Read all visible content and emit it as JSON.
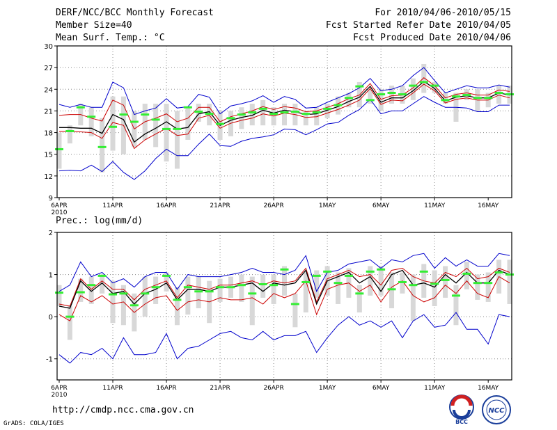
{
  "header": {
    "title": "DERF/NCC/BCC Monthly Forecast",
    "member_size": "Member Size=40",
    "variable": "Mean Surf. Temp.: °C",
    "period": "For 2010/04/06-2010/05/15",
    "started": "Fcst Started Refer Date 2010/04/05",
    "produced": "Fcst Produced Date 2010/04/06"
  },
  "footer": {
    "url": "http://cmdp.ncc.cma.gov.cn",
    "credit": "GrADS: COLA/IGES"
  },
  "logos": {
    "bcc": "BCC",
    "ncc": "NCC"
  },
  "colors": {
    "max": "#0000cc",
    "mean": "#000000",
    "std": "#cc0000",
    "median": "#33ee33",
    "box": "#d8d8d8"
  },
  "chart_data": [
    {
      "type": "line",
      "title": "Mean Surf. Temp.: °C",
      "x_ticks": [
        "6APR",
        "11APR",
        "16APR",
        "21APR",
        "26APR",
        "1MAY",
        "6MAY",
        "11MAY",
        "16MAY"
      ],
      "x_year": "2010",
      "ylim": [
        9,
        30
      ],
      "y_ticks": [
        9,
        12,
        15,
        18,
        21,
        24,
        27,
        30
      ],
      "grid": true,
      "series": [
        {
          "name": "ensemble max",
          "values": [
            21.9,
            21.5,
            21.9,
            21.5,
            21.5,
            25.0,
            24.2,
            20.5,
            21.0,
            21.4,
            22.7,
            21.4,
            21.6,
            23.3,
            22.9,
            20.6,
            21.7,
            22.0,
            22.4,
            23.1,
            22.2,
            23.0,
            22.6,
            21.4,
            21.5,
            22.2,
            22.8,
            23.4,
            24.2,
            25.5,
            23.8,
            24.0,
            24.5,
            25.9,
            27.0,
            25.2,
            23.5,
            24.0,
            24.5,
            24.2,
            24.2,
            24.6,
            24.3
          ]
        },
        {
          "name": "mean + std",
          "values": [
            20.4,
            20.5,
            20.5,
            20.0,
            19.6,
            22.5,
            21.8,
            18.5,
            19.5,
            20.0,
            20.6,
            19.5,
            20.0,
            21.5,
            21.5,
            19.5,
            20.2,
            20.6,
            21.0,
            21.6,
            21.2,
            21.6,
            21.4,
            20.9,
            21.0,
            21.5,
            22.0,
            22.7,
            23.2,
            24.8,
            22.6,
            23.1,
            23.2,
            24.2,
            25.6,
            24.5,
            22.8,
            23.3,
            23.5,
            23.2,
            23.2,
            23.9,
            23.7
          ]
        },
        {
          "name": "ensemble mean",
          "values": [
            18.7,
            18.7,
            18.6,
            18.6,
            17.9,
            20.5,
            19.8,
            16.7,
            17.8,
            18.6,
            19.5,
            18.5,
            18.7,
            20.6,
            20.9,
            19.0,
            19.7,
            20.1,
            20.4,
            21.1,
            20.7,
            21.1,
            20.9,
            20.5,
            20.6,
            21.1,
            21.6,
            22.3,
            22.9,
            24.4,
            22.2,
            22.8,
            22.8,
            23.8,
            25.1,
            24.1,
            22.4,
            22.9,
            23.1,
            22.8,
            22.8,
            23.5,
            23.2
          ]
        },
        {
          "name": "mean - std",
          "values": [
            18.2,
            18.2,
            18.1,
            18.0,
            17.2,
            19.4,
            19.0,
            15.8,
            17.0,
            17.8,
            18.6,
            17.6,
            17.8,
            20.0,
            20.4,
            18.6,
            19.3,
            19.7,
            20.0,
            20.6,
            20.3,
            20.7,
            20.5,
            20.1,
            20.2,
            20.7,
            21.2,
            21.8,
            22.5,
            24.1,
            21.9,
            22.5,
            22.4,
            23.5,
            24.7,
            23.8,
            22.1,
            22.6,
            22.8,
            22.5,
            22.5,
            23.2,
            22.8
          ]
        },
        {
          "name": "ensemble min",
          "values": [
            12.7,
            12.8,
            12.7,
            13.5,
            12.6,
            14.0,
            12.5,
            11.5,
            12.7,
            14.4,
            15.7,
            14.8,
            14.8,
            16.4,
            17.8,
            16.2,
            16.1,
            16.8,
            17.2,
            17.4,
            17.7,
            18.5,
            18.4,
            17.7,
            18.4,
            19.2,
            19.4,
            20.4,
            21.2,
            22.6,
            20.6,
            21.0,
            21.0,
            22.0,
            23.0,
            22.2,
            21.5,
            21.5,
            21.4,
            20.9,
            20.9,
            21.8,
            21.8
          ]
        },
        {
          "name": "median",
          "values": [
            15.7,
            18.2,
            21.5,
            20.2,
            16.0,
            18.8,
            20.5,
            19.5,
            20.5,
            19.8,
            18.5,
            18.5,
            21.5,
            20.9,
            20.6,
            19.2,
            20.0,
            20.5,
            20.8,
            21.3,
            20.6,
            20.8,
            20.9,
            20.6,
            20.8,
            21.3,
            21.8,
            22.8,
            24.4,
            22.5,
            23.3,
            23.5,
            23.3,
            24.5,
            25.0,
            24.5,
            22.5,
            23.0,
            23.2,
            22.8,
            22.8,
            23.5,
            23.3
          ]
        },
        {
          "name": "box low",
          "values": [
            13.0,
            16.5,
            19.0,
            17.5,
            12.5,
            15.5,
            15.0,
            16.0,
            17.0,
            16.0,
            14.0,
            13.0,
            17.0,
            19.5,
            19.0,
            17.0,
            17.5,
            18.5,
            19.0,
            19.0,
            19.0,
            19.0,
            19.0,
            19.0,
            19.0,
            20.0,
            20.5,
            21.5,
            21.5,
            22.0,
            21.0,
            22.0,
            22.0,
            22.5,
            23.5,
            23.5,
            22.0,
            19.5,
            22.5,
            21.0,
            21.5,
            22.0,
            22.0
          ]
        },
        {
          "name": "box high",
          "values": [
            18.0,
            19.0,
            22.0,
            21.5,
            20.0,
            23.0,
            23.0,
            21.0,
            22.0,
            22.0,
            22.0,
            21.0,
            21.5,
            22.0,
            22.0,
            21.0,
            21.0,
            21.5,
            22.0,
            22.5,
            21.5,
            22.0,
            22.0,
            21.0,
            21.5,
            22.0,
            23.0,
            23.5,
            25.0,
            24.0,
            24.0,
            24.5,
            24.5,
            25.5,
            27.5,
            25.0,
            23.5,
            23.5,
            24.0,
            24.0,
            23.5,
            24.5,
            24.5
          ]
        }
      ]
    },
    {
      "type": "line",
      "title": "Prec.: log(mm/d)",
      "x_ticks": [
        "6APR",
        "11APR",
        "16APR",
        "21APR",
        "26APR",
        "1MAY",
        "6MAY",
        "11MAY",
        "16MAY"
      ],
      "x_year": "2010",
      "ylim": [
        -1.5,
        2
      ],
      "y_ticks": [
        -1,
        0,
        1,
        2
      ],
      "grid": true,
      "series": [
        {
          "name": "ensemble max",
          "values": [
            0.6,
            0.75,
            1.3,
            0.95,
            1.05,
            0.8,
            0.9,
            0.7,
            0.95,
            1.05,
            1.05,
            0.65,
            1.0,
            0.95,
            0.95,
            0.95,
            1.0,
            1.05,
            1.15,
            1.05,
            1.05,
            1.0,
            1.1,
            1.45,
            0.6,
            1.05,
            1.1,
            1.25,
            1.3,
            1.35,
            1.15,
            1.35,
            1.3,
            1.45,
            1.5,
            1.15,
            1.4,
            1.2,
            1.35,
            1.2,
            1.2,
            1.5,
            1.45
          ]
        },
        {
          "name": "mean + std",
          "values": [
            0.3,
            0.25,
            0.9,
            0.65,
            0.85,
            0.65,
            0.65,
            0.4,
            0.65,
            0.75,
            0.85,
            0.45,
            0.75,
            0.7,
            0.65,
            0.75,
            0.75,
            0.8,
            0.85,
            0.75,
            0.85,
            0.8,
            0.85,
            1.15,
            0.35,
            0.9,
            1.0,
            1.1,
            0.95,
            1.0,
            0.75,
            1.1,
            1.15,
            0.95,
            0.85,
            0.8,
            1.05,
            0.95,
            1.15,
            0.9,
            0.95,
            1.15,
            1.05
          ]
        },
        {
          "name": "ensemble mean",
          "values": [
            0.25,
            0.2,
            0.85,
            0.6,
            0.8,
            0.55,
            0.6,
            0.3,
            0.55,
            0.65,
            0.8,
            0.4,
            0.65,
            0.65,
            0.6,
            0.7,
            0.7,
            0.75,
            0.8,
            0.6,
            0.8,
            0.75,
            0.8,
            1.1,
            0.3,
            0.85,
            0.95,
            1.05,
            0.8,
            0.95,
            0.6,
            1.0,
            1.1,
            0.75,
            0.8,
            0.7,
            1.0,
            0.8,
            1.05,
            0.8,
            0.8,
            1.1,
            1.0
          ]
        },
        {
          "name": "mean - std",
          "values": [
            0.05,
            -0.1,
            0.5,
            0.35,
            0.5,
            0.3,
            0.35,
            0.1,
            0.3,
            0.45,
            0.5,
            0.15,
            0.35,
            0.4,
            0.35,
            0.45,
            0.4,
            0.4,
            0.45,
            0.3,
            0.55,
            0.45,
            0.55,
            0.85,
            0.05,
            0.65,
            0.75,
            0.8,
            0.6,
            0.75,
            0.35,
            0.7,
            0.85,
            0.5,
            0.35,
            0.45,
            0.75,
            0.55,
            0.85,
            0.55,
            0.45,
            0.95,
            0.8
          ]
        },
        {
          "name": "ensemble min",
          "values": [
            -0.9,
            -1.1,
            -0.85,
            -0.9,
            -0.75,
            -1.0,
            -0.5,
            -0.9,
            -0.9,
            -0.85,
            -0.4,
            -1.0,
            -0.75,
            -0.7,
            -0.55,
            -0.4,
            -0.35,
            -0.5,
            -0.55,
            -0.35,
            -0.55,
            -0.45,
            -0.45,
            -0.35,
            -0.85,
            -0.5,
            -0.2,
            0.0,
            -0.2,
            -0.1,
            -0.25,
            -0.1,
            -0.5,
            -0.1,
            0.05,
            -0.25,
            -0.2,
            0.1,
            -0.3,
            -0.3,
            -0.65,
            0.05,
            0.0
          ]
        },
        {
          "name": "median",
          "values": [
            0.57,
            0.0,
            0.58,
            0.75,
            0.97,
            0.53,
            0.55,
            0.27,
            0.55,
            0.7,
            0.97,
            0.4,
            0.7,
            0.6,
            0.6,
            0.7,
            0.7,
            0.75,
            0.55,
            0.77,
            0.75,
            1.12,
            0.3,
            0.82,
            0.97,
            1.07,
            0.8,
            0.97,
            0.55,
            1.07,
            1.12,
            0.65,
            0.82,
            0.75,
            1.07,
            0.78,
            0.87,
            0.5,
            1.02,
            0.8,
            0.8,
            1.05,
            1.0
          ]
        },
        {
          "name": "box low",
          "values": [
            0.25,
            -0.55,
            0.35,
            0.3,
            0.55,
            -0.15,
            -0.2,
            -0.35,
            0.0,
            0.3,
            0.6,
            -0.2,
            0.05,
            0.2,
            -0.15,
            0.35,
            0.45,
            0.35,
            -0.2,
            0.45,
            0.3,
            0.5,
            -0.25,
            0.1,
            0.45,
            0.5,
            0.3,
            0.45,
            0.1,
            0.5,
            0.5,
            0.2,
            0.55,
            -0.1,
            0.45,
            0.25,
            0.45,
            -0.2,
            0.65,
            0.4,
            0.35,
            0.55,
            0.3
          ]
        },
        {
          "name": "box high",
          "values": [
            0.75,
            0.25,
            0.9,
            0.95,
            1.0,
            0.85,
            0.75,
            0.55,
            0.95,
            0.95,
            1.05,
            0.7,
            0.95,
            0.95,
            0.85,
            0.9,
            0.95,
            1.0,
            0.95,
            1.0,
            1.0,
            1.2,
            0.55,
            1.05,
            1.1,
            1.2,
            1.05,
            1.15,
            0.75,
            1.2,
            1.2,
            1.05,
            1.05,
            1.0,
            1.25,
            1.1,
            1.2,
            0.75,
            1.3,
            1.0,
            1.05,
            1.35,
            1.35
          ]
        }
      ]
    }
  ]
}
